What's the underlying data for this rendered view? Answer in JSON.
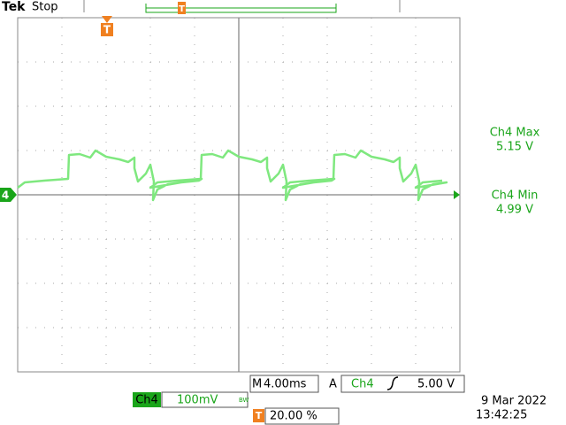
{
  "header": {
    "brand": "Tek",
    "status": "Stop"
  },
  "markers": {
    "channel": "4",
    "trigger": "T",
    "trigger_top": "T"
  },
  "measurements": [
    {
      "label": "Ch4 Max",
      "value": "5.15 V"
    },
    {
      "label": "Ch4 Min",
      "value": "4.99 V"
    }
  ],
  "timebase": {
    "prefix": "M",
    "value": "4.00ms"
  },
  "trigger": {
    "mode": "A",
    "source": "Ch4",
    "level": "5.00 V"
  },
  "channel": {
    "name": "Ch4",
    "scale": "100mV",
    "bw": "BW"
  },
  "trigger_position": {
    "value": "20.00 %"
  },
  "datetime": {
    "date": "9 Mar  2022",
    "time": "13:42:25"
  }
}
